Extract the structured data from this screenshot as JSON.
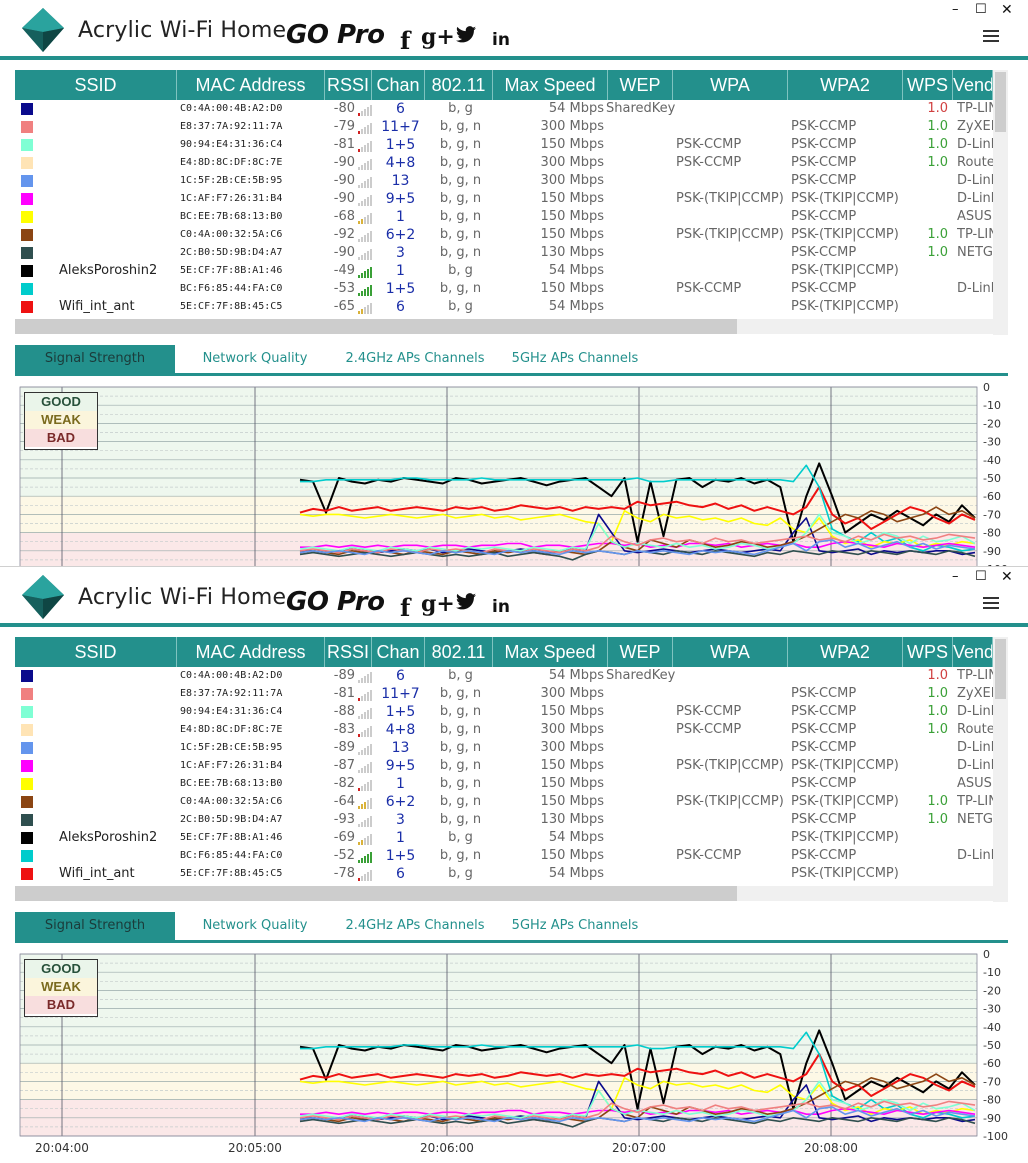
{
  "app": {
    "title": "Acrylic Wi-Fi Home",
    "promo": "GO Pro",
    "social": [
      "f",
      "g+",
      "twitter",
      "in"
    ],
    "window_controls": [
      "–",
      "☐",
      "✕"
    ]
  },
  "columns": [
    "SSID",
    "MAC Address",
    "RSSI",
    "Chan",
    "802.11",
    "Max Speed",
    "WEP",
    "WPA",
    "WPA2",
    "WPS",
    "Vendor"
  ],
  "tabs": [
    "Signal Strength",
    "Network Quality",
    "2.4GHz APs Channels",
    "5GHz APs Channels"
  ],
  "legend": {
    "good": "GOOD",
    "weak": "WEAK",
    "bad": "BAD"
  },
  "networks": [
    {
      "color": "#0a0a8c",
      "ssid": "",
      "mac": "C0:4A:00:4B:A2:D0",
      "chan": "6",
      "std": "b, g",
      "speed": "54 Mbps",
      "wep": "SharedKey",
      "wpa": "",
      "wpa2": "",
      "wps": "1.0",
      "wps_color": "red",
      "vendor": "TP-LINK"
    },
    {
      "color": "#f08080",
      "ssid": "",
      "mac": "E8:37:7A:92:11:7A",
      "chan": "11+7",
      "std": "b, g, n",
      "speed": "300 Mbps",
      "wep": "",
      "wpa": "",
      "wpa2": "PSK-CCMP",
      "wps": "1.0",
      "wps_color": "green",
      "vendor": "ZyXEL"
    },
    {
      "color": "#7fffd4",
      "ssid": "",
      "mac": "90:94:E4:31:36:C4",
      "chan": "1+5",
      "std": "b, g, n",
      "speed": "150 Mbps",
      "wep": "",
      "wpa": "PSK-CCMP",
      "wpa2": "PSK-CCMP",
      "wps": "1.0",
      "wps_color": "green",
      "vendor": "D-Link"
    },
    {
      "color": "#ffe4b5",
      "ssid": "",
      "mac": "E4:8D:8C:DF:8C:7E",
      "chan": "4+8",
      "std": "b, g, n",
      "speed": "300 Mbps",
      "wep": "",
      "wpa": "PSK-CCMP",
      "wpa2": "PSK-CCMP",
      "wps": "1.0",
      "wps_color": "green",
      "vendor": "Router"
    },
    {
      "color": "#6495ed",
      "ssid": "",
      "mac": "1C:5F:2B:CE:5B:95",
      "chan": "13",
      "std": "b, g, n",
      "speed": "300 Mbps",
      "wep": "",
      "wpa": "",
      "wpa2": "PSK-CCMP",
      "wps": "",
      "wps_color": "green",
      "vendor": "D-Link"
    },
    {
      "color": "#ff00ff",
      "ssid": "",
      "mac": "1C:AF:F7:26:31:B4",
      "chan": "9+5",
      "std": "b, g, n",
      "speed": "150 Mbps",
      "wep": "",
      "wpa": "PSK-(TKIP|CCMP)",
      "wpa2": "PSK-(TKIP|CCMP)",
      "wps": "",
      "wps_color": "green",
      "vendor": "D-Link"
    },
    {
      "color": "#ffff00",
      "ssid": "",
      "mac": "BC:EE:7B:68:13:B0",
      "chan": "1",
      "std": "b, g, n",
      "speed": "150 Mbps",
      "wep": "",
      "wpa": "",
      "wpa2": "PSK-CCMP",
      "wps": "",
      "wps_color": "green",
      "vendor": "ASUS"
    },
    {
      "color": "#8b4513",
      "ssid": "",
      "mac": "C0:4A:00:32:5A:C6",
      "chan": "6+2",
      "std": "b, g, n",
      "speed": "150 Mbps",
      "wep": "",
      "wpa": "PSK-(TKIP|CCMP)",
      "wpa2": "PSK-(TKIP|CCMP)",
      "wps": "1.0",
      "wps_color": "green",
      "vendor": "TP-LINK"
    },
    {
      "color": "#2f4f4f",
      "ssid": "",
      "mac": "2C:B0:5D:9B:D4:A7",
      "chan": "3",
      "std": "b, g, n",
      "speed": "130 Mbps",
      "wep": "",
      "wpa": "",
      "wpa2": "PSK-CCMP",
      "wps": "1.0",
      "wps_color": "green",
      "vendor": "NETGEAR"
    },
    {
      "color": "#000000",
      "ssid": "AleksPoroshin2",
      "mac": "5E:CF:7F:8B:A1:46",
      "chan": "1",
      "std": "b, g",
      "speed": "54 Mbps",
      "wep": "",
      "wpa": "",
      "wpa2": "PSK-(TKIP|CCMP)",
      "wps": "",
      "wps_color": "green",
      "vendor": ""
    },
    {
      "color": "#00cccc",
      "ssid": "",
      "mac": "BC:F6:85:44:FA:C0",
      "chan": "1+5",
      "std": "b, g, n",
      "speed": "150 Mbps",
      "wep": "",
      "wpa": "PSK-CCMP",
      "wpa2": "PSK-CCMP",
      "wps": "",
      "wps_color": "green",
      "vendor": "D-Link"
    },
    {
      "color": "#ee1111",
      "ssid": "Wifi_int_ant",
      "mac": "5E:CF:7F:8B:45:C5",
      "chan": "6",
      "std": "b, g",
      "speed": "54 Mbps",
      "wep": "",
      "wpa": "",
      "wpa2": "PSK-(TKIP|CCMP)",
      "wps": "",
      "wps_color": "green",
      "vendor": ""
    }
  ],
  "rssi": {
    "win1": [
      "-80",
      "-79",
      "-81",
      "-90",
      "-90",
      "-90",
      "-68",
      "-92",
      "-90",
      "-49",
      "-53",
      "-65"
    ],
    "win2": [
      "-89",
      "-81",
      "-88",
      "-83",
      "-89",
      "-87",
      "-82",
      "-64",
      "-93",
      "-69",
      "-52",
      "-78"
    ]
  },
  "chart_data": {
    "type": "line",
    "y_ticks": [
      "0",
      "-10",
      "-20",
      "-30",
      "-40",
      "-50",
      "-60",
      "-70",
      "-80",
      "-90",
      "-100"
    ],
    "ylim": [
      -100,
      0
    ],
    "x_ticks": [
      "20:04:00",
      "20:05:00",
      "20:06:00",
      "20:07:00",
      "20:08:00"
    ],
    "bands": {
      "good": [
        -60,
        0
      ],
      "weak": [
        -80,
        -60
      ],
      "bad": [
        -100,
        -80
      ]
    },
    "series": [
      {
        "name": "AleksPoroshin2",
        "color": "#000000",
        "values": [
          -51,
          -52,
          -69,
          -50,
          -52,
          -53,
          -51,
          -52,
          -50,
          -51,
          -52,
          -53,
          -50,
          -51,
          -53,
          -52,
          -51,
          -50,
          -52,
          -54,
          -52,
          -51,
          -50,
          -55,
          -60,
          -50,
          -85,
          -52,
          -82,
          -51,
          -50,
          -55,
          -51,
          -52,
          -50,
          -53,
          -51,
          -55,
          -85,
          -60,
          -42,
          -60,
          -80,
          -75,
          -70,
          -73,
          -68,
          -72,
          -76,
          -70,
          -74,
          -65,
          -72
        ]
      },
      {
        "name": "Wifi_int_ant",
        "color": "#ee1111",
        "values": [
          -69,
          -67,
          -68,
          -66,
          -68,
          -67,
          -66,
          -68,
          -67,
          -66,
          -67,
          -68,
          -66,
          -67,
          -66,
          -68,
          -67,
          -65,
          -66,
          -67,
          -66,
          -68,
          -66,
          -67,
          -66,
          -67,
          -63,
          -65,
          -64,
          -63,
          -65,
          -66,
          -64,
          -67,
          -65,
          -68,
          -66,
          -68,
          -70,
          -66,
          -55,
          -70,
          -75,
          -72,
          -78,
          -74,
          -70,
          -66,
          -68,
          -72,
          -75,
          -70,
          -73
        ]
      },
      {
        "name": "",
        "color": "#00cccc",
        "values": [
          -52,
          -52,
          -51,
          -51,
          -51,
          -51,
          -51,
          -51,
          -50,
          -50,
          -51,
          -51,
          -51,
          -51,
          -50,
          -51,
          -51,
          -51,
          -51,
          -51,
          -51,
          -51,
          -51,
          -51,
          -51,
          -51,
          -50,
          -52,
          -52,
          -51,
          -51,
          -51,
          -51,
          -51,
          -51,
          -51,
          -51,
          -51,
          -52,
          -43,
          -55,
          -78,
          -82,
          -85,
          -80,
          -85,
          -83,
          -88,
          -90,
          -87,
          -88,
          -90,
          -89
        ]
      },
      {
        "name": "",
        "color": "#ffff00",
        "values": [
          -70,
          -71,
          -70,
          -70,
          -71,
          -72,
          -71,
          -70,
          -71,
          -72,
          -71,
          -70,
          -72,
          -71,
          -70,
          -72,
          -71,
          -73,
          -72,
          -71,
          -70,
          -72,
          -74,
          -75,
          -85,
          -68,
          -72,
          -74,
          -70,
          -72,
          -71,
          -73,
          -72,
          -74,
          -72,
          -75,
          -76,
          -72,
          -78,
          -80,
          -72,
          -82,
          -86,
          -84,
          -88,
          -85,
          -86,
          -84,
          -88,
          -86,
          -87,
          -85,
          -86
        ]
      },
      {
        "name": "",
        "color": "#ff00ff",
        "values": [
          -88,
          -88,
          -87,
          -88,
          -87,
          -88,
          -87,
          -88,
          -87,
          -87,
          -88,
          -87,
          -87,
          -88,
          -87,
          -87,
          -86,
          -86,
          -88,
          -87,
          -87,
          -88,
          -87,
          -86,
          -86,
          -87,
          -86,
          -88,
          -87,
          -88,
          -86,
          -86,
          -87,
          -86,
          -88,
          -87,
          -86,
          -87,
          -86,
          -88,
          -88,
          -86,
          -85,
          -86,
          -87,
          -88,
          -86,
          -87,
          -88,
          -87,
          -86,
          -87,
          -88
        ]
      },
      {
        "name": "",
        "color": "#0a0a8c",
        "values": [
          -90,
          -90,
          -91,
          -90,
          -89,
          -90,
          -91,
          -90,
          -89,
          -90,
          -89,
          -91,
          -90,
          -89,
          -90,
          -91,
          -90,
          -89,
          -90,
          -91,
          -90,
          -89,
          -90,
          -70,
          -80,
          -90,
          -91,
          -90,
          -89,
          -90,
          -91,
          -90,
          -89,
          -90,
          -91,
          -90,
          -89,
          -90,
          -80,
          -72,
          -90,
          -91,
          -90,
          -89,
          -92,
          -90,
          -91,
          -90,
          -91,
          -90,
          -90,
          -92,
          -91
        ]
      },
      {
        "name": "",
        "color": "#8b4513",
        "values": [
          -91,
          -90,
          -91,
          -92,
          -90,
          -91,
          -90,
          -91,
          -92,
          -90,
          -91,
          -92,
          -90,
          -91,
          -92,
          -90,
          -91,
          -90,
          -91,
          -92,
          -90,
          -91,
          -92,
          -90,
          -85,
          -88,
          -90,
          -84,
          -86,
          -88,
          -84,
          -86,
          -88,
          -87,
          -85,
          -86,
          -88,
          -87,
          -85,
          -82,
          -78,
          -74,
          -70,
          -72,
          -68,
          -70,
          -74,
          -72,
          -70,
          -66,
          -70,
          -68,
          -72
        ]
      },
      {
        "name": "",
        "color": "#7fffd4",
        "values": [
          -89,
          -88,
          -89,
          -90,
          -88,
          -89,
          -90,
          -88,
          -89,
          -90,
          -88,
          -89,
          -90,
          -88,
          -89,
          -88,
          -89,
          -90,
          -88,
          -89,
          -90,
          -88,
          -89,
          -75,
          -85,
          -88,
          -86,
          -87,
          -88,
          -86,
          -88,
          -87,
          -89,
          -88,
          -86,
          -87,
          -89,
          -88,
          -86,
          -80,
          -70,
          -80,
          -82,
          -86,
          -84,
          -80,
          -82,
          -86,
          -82,
          -85,
          -84,
          -82,
          -86
        ]
      },
      {
        "name": "",
        "color": "#2f4f4f",
        "values": [
          -92,
          -91,
          -92,
          -93,
          -92,
          -91,
          -92,
          -93,
          -92,
          -91,
          -92,
          -93,
          -92,
          -93,
          -92,
          -91,
          -93,
          -92,
          -91,
          -92,
          -93,
          -95,
          -92,
          -90,
          -91,
          -92,
          -90,
          -91,
          -92,
          -90,
          -91,
          -92,
          -90,
          -91,
          -92,
          -93,
          -91,
          -92,
          -90,
          -91,
          -92,
          -90,
          -91,
          -92,
          -90,
          -91,
          -92,
          -90,
          -91,
          -92,
          -90,
          -91,
          -93
        ]
      },
      {
        "name": "",
        "color": "#f08080",
        "values": [
          -90,
          -89,
          -90,
          -91,
          -89,
          -90,
          -91,
          -89,
          -90,
          -91,
          -89,
          -90,
          -89,
          -90,
          -91,
          -89,
          -90,
          -91,
          -89,
          -90,
          -91,
          -89,
          -90,
          -88,
          -82,
          -85,
          -87,
          -84,
          -83,
          -85,
          -84,
          -86,
          -83,
          -85,
          -84,
          -86,
          -85,
          -84,
          -83,
          -82,
          -84,
          -83,
          -85,
          -82,
          -84,
          -81,
          -83,
          -82,
          -84,
          -83,
          -81,
          -82,
          -83
        ]
      },
      {
        "name": "",
        "color": "#6495ed",
        "values": [
          -91,
          -90,
          -91,
          -90,
          -91,
          -92,
          -90,
          -91,
          -90,
          -91,
          -92,
          -90,
          -91,
          -90,
          -91,
          -92,
          -90,
          -91,
          -90,
          -91,
          -92,
          -90,
          -91,
          -90,
          -91,
          -92,
          -90,
          -91,
          -90,
          -91,
          -92,
          -90,
          -91,
          -90,
          -91,
          -92,
          -90,
          -88,
          -86,
          -90,
          -85,
          -84,
          -88,
          -86,
          -89,
          -87,
          -85,
          -88,
          -86,
          -89,
          -87,
          -88,
          -89
        ]
      }
    ]
  }
}
